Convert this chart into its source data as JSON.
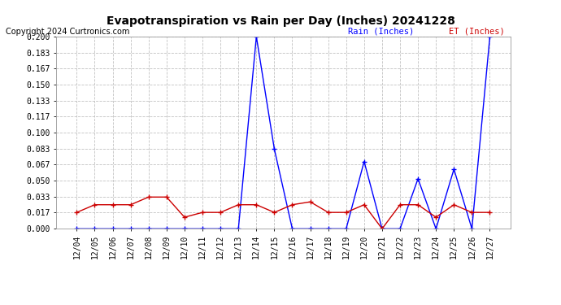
{
  "title": "Evapotranspiration vs Rain per Day (Inches) 20241228",
  "copyright": "Copyright 2024 Curtronics.com",
  "legend_rain": "Rain (Inches)",
  "legend_et": "ET (Inches)",
  "dates": [
    "12/04",
    "12/05",
    "12/06",
    "12/07",
    "12/08",
    "12/09",
    "12/10",
    "12/11",
    "12/12",
    "12/13",
    "12/14",
    "12/15",
    "12/16",
    "12/17",
    "12/18",
    "12/19",
    "12/20",
    "12/21",
    "12/22",
    "12/23",
    "12/24",
    "12/25",
    "12/26",
    "12/27"
  ],
  "rain": [
    0.0,
    0.0,
    0.0,
    0.0,
    0.0,
    0.0,
    0.0,
    0.0,
    0.0,
    0.0,
    0.2,
    0.083,
    0.0,
    0.0,
    0.0,
    0.0,
    0.07,
    0.0,
    0.0,
    0.052,
    0.0,
    0.062,
    0.0,
    0.2
  ],
  "et": [
    0.017,
    0.025,
    0.025,
    0.025,
    0.033,
    0.033,
    0.012,
    0.017,
    0.017,
    0.025,
    0.025,
    0.017,
    0.025,
    0.028,
    0.017,
    0.017,
    0.025,
    0.0,
    0.025,
    0.025,
    0.012,
    0.025,
    0.017,
    0.017
  ],
  "ylim": [
    0.0,
    0.2
  ],
  "yticks": [
    0.0,
    0.017,
    0.033,
    0.05,
    0.067,
    0.083,
    0.1,
    0.117,
    0.133,
    0.15,
    0.167,
    0.183,
    0.2
  ],
  "rain_color": "#0000ff",
  "et_color": "#cc0000",
  "background_color": "#ffffff",
  "grid_color": "#bbbbbb",
  "title_fontsize": 10,
  "tick_fontsize": 7,
  "copyright_fontsize": 7,
  "legend_fontsize": 7.5
}
